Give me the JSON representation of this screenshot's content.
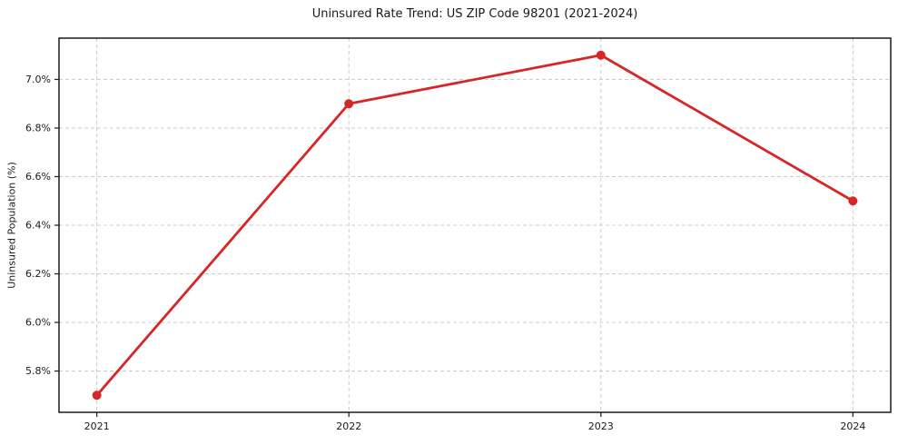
{
  "chart_data": {
    "type": "line",
    "title": "Uninsured Rate Trend: US ZIP Code 98201 (2021-2024)",
    "xlabel": "",
    "ylabel": "Uninsured Population (%)",
    "x": [
      2021,
      2022,
      2023,
      2024
    ],
    "y": [
      5.7,
      6.9,
      7.1,
      6.5
    ],
    "x_ticks": [
      2021,
      2022,
      2023,
      2024
    ],
    "x_tick_labels": [
      "2021",
      "2022",
      "2023",
      "2024"
    ],
    "y_ticks": [
      5.8,
      6.0,
      6.2,
      6.4,
      6.6,
      6.8,
      7.0
    ],
    "y_tick_labels": [
      "5.8%",
      "6.0%",
      "6.2%",
      "6.4%",
      "6.6%",
      "6.8%",
      "7.0%"
    ],
    "xlim": [
      2020.85,
      2024.15
    ],
    "ylim": [
      5.63,
      7.17
    ],
    "grid": true,
    "grid_style": "dashed",
    "legend_position": "none",
    "colors": {
      "line": "#d62728",
      "marker": "#d62728",
      "grid": "#cccccc",
      "spine": "#1a1a1a",
      "background": "#ffffff"
    }
  }
}
